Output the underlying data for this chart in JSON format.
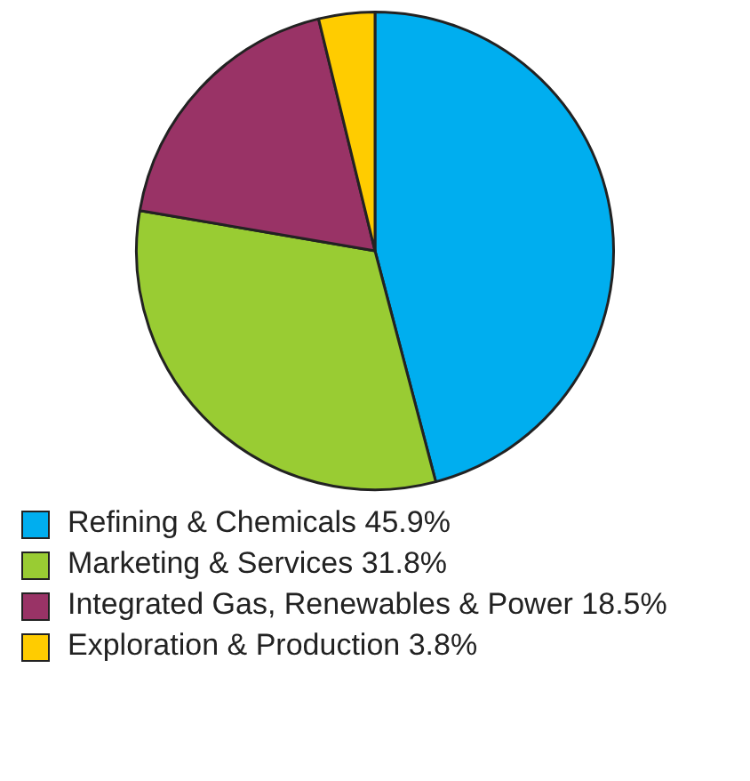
{
  "chart_data": {
    "type": "pie",
    "categories": [
      "Refining & Chemicals",
      "Marketing & Services",
      "Integrated Gas, Renewables & Power",
      "Exploration & Production"
    ],
    "values": [
      45.9,
      31.8,
      18.5,
      3.8
    ],
    "value_labels": [
      "45.9%",
      "31.8%",
      "18.5%",
      "3.8%"
    ],
    "colors": [
      "#00aeef",
      "#99cc33",
      "#993366",
      "#ffcc00"
    ],
    "legend": "bottom"
  }
}
